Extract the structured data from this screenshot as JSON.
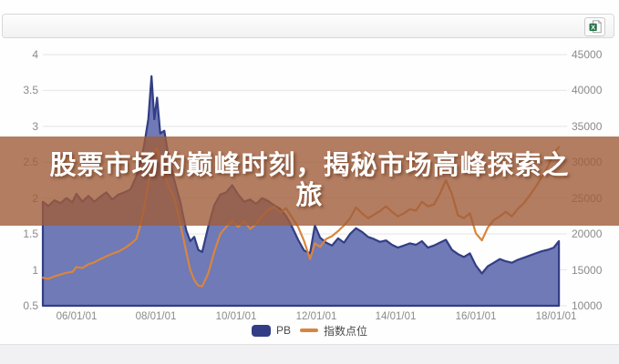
{
  "toolbar": {
    "export_tooltip": "Excel"
  },
  "overlay": {
    "title_line1": "股票市场的巅峰时刻，揭秘市场高峰探索之",
    "title_line2": "旅",
    "band_color": "rgba(160,92,58,0.8)"
  },
  "legend": {
    "items": [
      {
        "label": "PB",
        "color": "#333d85",
        "shape": "square"
      },
      {
        "label": "指数点位",
        "color": "#d9853f",
        "shape": "line"
      }
    ]
  },
  "chart_data": {
    "type": "combo-area-line",
    "title": "股票市场的巅峰时刻，揭秘市场高峰探索之旅",
    "grid": "horizontal",
    "legend_position": "bottom",
    "x_axis": {
      "min": 2005.16,
      "max": 2018.1,
      "tick_years": [
        2006,
        2008,
        2010,
        2012,
        2014,
        2016,
        2018
      ],
      "labels": [
        "06/01/01",
        "08/01/01",
        "10/01/01",
        "12/01/01",
        "14/01/01",
        "16/01/01",
        "18/01/01"
      ]
    },
    "left_axis": {
      "min": 0.5,
      "max": 4,
      "ticks": [
        4,
        3.5,
        3,
        2.5,
        2,
        1.5,
        1,
        0.5
      ],
      "labels": [
        "4",
        "3.5",
        "3",
        "2.5",
        "2",
        "1.5",
        "1",
        "0.5"
      ]
    },
    "right_axis": {
      "min": 10000,
      "max": 45000,
      "ticks": [
        45000,
        40000,
        35000,
        30000,
        25000,
        20000,
        15000,
        10000
      ],
      "labels": [
        "45000",
        "40000",
        "35000",
        "30000",
        "25000",
        "20000",
        "15000",
        "10000"
      ]
    },
    "x": [
      2005.16,
      2005.3,
      2005.45,
      2005.6,
      2005.75,
      2005.9,
      2006.0,
      2006.15,
      2006.3,
      2006.45,
      2006.6,
      2006.75,
      2006.9,
      2007.05,
      2007.2,
      2007.35,
      2007.5,
      2007.6,
      2007.7,
      2007.8,
      2007.88,
      2007.95,
      2008.02,
      2008.1,
      2008.2,
      2008.3,
      2008.45,
      2008.6,
      2008.75,
      2008.85,
      2008.95,
      2009.05,
      2009.15,
      2009.3,
      2009.45,
      2009.6,
      2009.75,
      2009.9,
      2010.05,
      2010.2,
      2010.35,
      2010.5,
      2010.65,
      2010.8,
      2010.95,
      2011.1,
      2011.25,
      2011.4,
      2011.55,
      2011.7,
      2011.85,
      2011.97,
      2012.1,
      2012.25,
      2012.4,
      2012.55,
      2012.7,
      2012.85,
      2013.0,
      2013.15,
      2013.3,
      2013.45,
      2013.6,
      2013.75,
      2013.9,
      2014.05,
      2014.2,
      2014.35,
      2014.5,
      2014.65,
      2014.8,
      2014.95,
      2015.1,
      2015.25,
      2015.4,
      2015.55,
      2015.7,
      2015.85,
      2016.0,
      2016.15,
      2016.3,
      2016.45,
      2016.6,
      2016.75,
      2016.9,
      2017.05,
      2017.2,
      2017.35,
      2017.5,
      2017.65,
      2017.8,
      2017.95,
      2018.08
    ],
    "series": [
      {
        "name": "PB",
        "type": "area",
        "axis": "left",
        "fill": "#6f7ab6",
        "stroke": "#323e85",
        "values": [
          1.95,
          1.89,
          1.97,
          1.93,
          2.0,
          1.94,
          2.06,
          1.95,
          2.03,
          1.95,
          2.02,
          2.08,
          1.98,
          2.05,
          2.08,
          2.12,
          2.3,
          2.5,
          2.75,
          3.1,
          3.7,
          3.1,
          3.4,
          2.9,
          2.94,
          2.6,
          2.25,
          1.95,
          1.55,
          1.4,
          1.46,
          1.28,
          1.25,
          1.6,
          1.9,
          2.05,
          2.08,
          2.18,
          2.05,
          1.95,
          1.98,
          1.92,
          2.0,
          1.96,
          1.9,
          1.85,
          1.75,
          1.6,
          1.42,
          1.27,
          1.23,
          1.62,
          1.45,
          1.38,
          1.34,
          1.44,
          1.38,
          1.5,
          1.58,
          1.53,
          1.46,
          1.43,
          1.39,
          1.41,
          1.35,
          1.31,
          1.34,
          1.37,
          1.35,
          1.4,
          1.31,
          1.34,
          1.38,
          1.42,
          1.28,
          1.22,
          1.18,
          1.23,
          1.06,
          0.95,
          1.05,
          1.1,
          1.15,
          1.12,
          1.1,
          1.14,
          1.17,
          1.2,
          1.23,
          1.26,
          1.28,
          1.31,
          1.4
        ]
      },
      {
        "name": "指数点位",
        "type": "line",
        "axis": "right",
        "stroke": "#d9853f",
        "values": [
          13900,
          13750,
          14100,
          14350,
          14600,
          14700,
          15400,
          15250,
          15800,
          16050,
          16500,
          16900,
          17250,
          17550,
          18000,
          18600,
          19300,
          21200,
          23800,
          27000,
          29500,
          31500,
          32000,
          30000,
          28200,
          26800,
          25000,
          21500,
          17500,
          15000,
          13600,
          12800,
          12700,
          14500,
          17500,
          20000,
          21000,
          21800,
          21000,
          21800,
          20700,
          21400,
          22500,
          23400,
          23800,
          23000,
          23600,
          22300,
          21000,
          19000,
          16500,
          18700,
          18200,
          19300,
          19700,
          20400,
          21200,
          22200,
          23700,
          22900,
          22200,
          22700,
          23200,
          23850,
          23100,
          22450,
          22900,
          23450,
          23250,
          24500,
          23850,
          24100,
          25600,
          27500,
          25600,
          22600,
          22200,
          22900,
          20100,
          19100,
          20900,
          21950,
          22450,
          23100,
          22450,
          23500,
          24300,
          25400,
          26600,
          27900,
          29400,
          31300,
          32100
        ]
      }
    ]
  }
}
